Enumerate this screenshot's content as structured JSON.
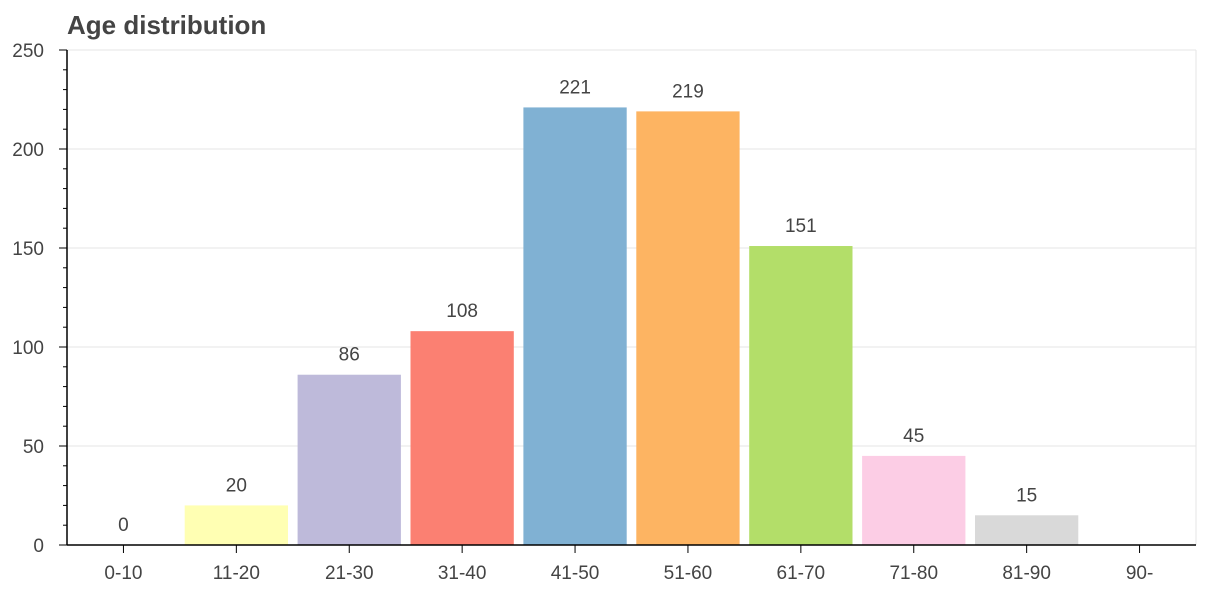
{
  "chart_data": {
    "type": "bar",
    "title": "Age distribution",
    "categories": [
      "0-10",
      "11-20",
      "21-30",
      "31-40",
      "41-50",
      "51-60",
      "61-70",
      "71-80",
      "81-90",
      "90-"
    ],
    "values": [
      0,
      20,
      86,
      108,
      221,
      219,
      151,
      45,
      15,
      null
    ],
    "data_labels": [
      "0",
      "20",
      "86",
      "108",
      "221",
      "219",
      "151",
      "45",
      "15",
      ""
    ],
    "xlabel": "",
    "ylabel": "",
    "ylim": [
      0,
      250
    ],
    "yticks": [
      0,
      50,
      100,
      150,
      200,
      250
    ],
    "grid": true,
    "legend": "none",
    "colors": [
      "#8dd3c7",
      "#ffffb3",
      "#bebada",
      "#fb8072",
      "#80b1d3",
      "#fdb462",
      "#b3de69",
      "#fccde5",
      "#d9d9d9",
      "#bc80bd"
    ]
  }
}
